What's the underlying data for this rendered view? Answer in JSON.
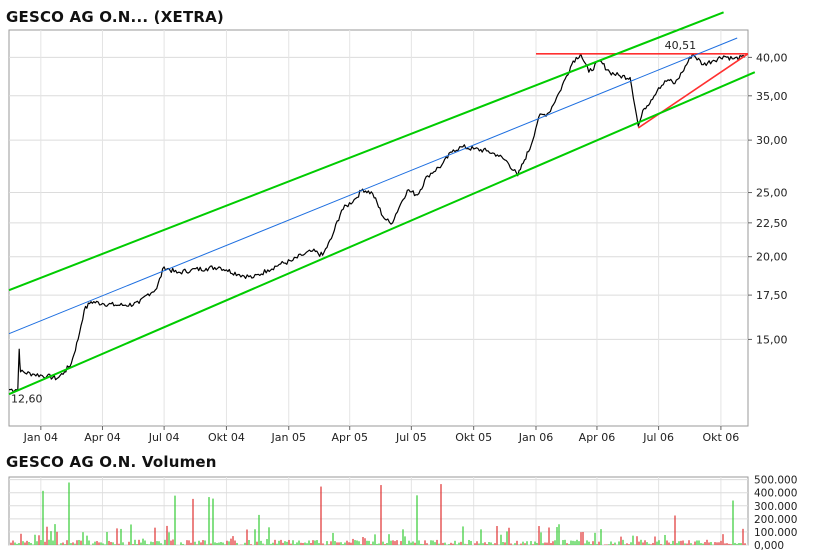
{
  "chart_data": [
    {
      "type": "line",
      "title": "GESCO AG O.N... (XETRA)",
      "y_scale": "log",
      "ylim": [
        11.1,
        44.0
      ],
      "y_ticks": [
        "15,00",
        "17,50",
        "20,00",
        "22,50",
        "25,00",
        "30,00",
        "35,00",
        "40,00"
      ],
      "y_tick_values": [
        15,
        17.5,
        20,
        22.5,
        25,
        30,
        35,
        40
      ],
      "x_ticks": [
        "Jan 04",
        "Apr 04",
        "Jul 04",
        "Okt 04",
        "Jan 05",
        "Apr 05",
        "Jul 05",
        "Okt 05",
        "Jan 06",
        "Apr 06",
        "Jul 06",
        "Okt 06"
      ],
      "x_range": [
        "2003-11-15",
        "2006-11-10"
      ],
      "grid": true,
      "annotations": {
        "low_label": "12,60",
        "high_label": "40,51"
      },
      "series": [
        {
          "color": "#000000",
          "points": [
            [
              "2003-11-15",
              12.6
            ],
            [
              "2003-11-25",
              12.6
            ],
            [
              "2003-11-28",
              12.6
            ],
            [
              "2003-11-30",
              14.5
            ],
            [
              "2003-12-02",
              13.4
            ],
            [
              "2003-12-20",
              13.3
            ],
            [
              "2004-01-10",
              13.2
            ],
            [
              "2004-01-25",
              13.1
            ],
            [
              "2004-02-05",
              13.4
            ],
            [
              "2004-02-15",
              13.8
            ],
            [
              "2004-02-25",
              15.0
            ],
            [
              "2004-03-05",
              16.6
            ],
            [
              "2004-03-15",
              17.1
            ],
            [
              "2004-04-01",
              17.0
            ],
            [
              "2004-04-20",
              16.9
            ],
            [
              "2004-05-05",
              16.9
            ],
            [
              "2004-05-25",
              17.0
            ],
            [
              "2004-06-05",
              17.5
            ],
            [
              "2004-06-20",
              17.9
            ],
            [
              "2004-07-01",
              19.3
            ],
            [
              "2004-07-20",
              18.9
            ],
            [
              "2004-08-10",
              19.1
            ],
            [
              "2004-09-01",
              19.2
            ],
            [
              "2004-09-20",
              19.3
            ],
            [
              "2004-10-01",
              19.1
            ],
            [
              "2004-10-20",
              18.8
            ],
            [
              "2004-11-10",
              18.6
            ],
            [
              "2004-12-01",
              19.1
            ],
            [
              "2004-12-20",
              19.5
            ],
            [
              "2005-01-05",
              19.7
            ],
            [
              "2005-01-20",
              20.1
            ],
            [
              "2005-02-05",
              20.4
            ],
            [
              "2005-02-20",
              20.1
            ],
            [
              "2005-03-05",
              21.3
            ],
            [
              "2005-03-20",
              23.5
            ],
            [
              "2005-04-10",
              24.5
            ],
            [
              "2005-04-20",
              25.3
            ],
            [
              "2005-05-05",
              24.9
            ],
            [
              "2005-05-20",
              23.0
            ],
            [
              "2005-06-01",
              22.4
            ],
            [
              "2005-06-15",
              24.0
            ],
            [
              "2005-06-25",
              25.2
            ],
            [
              "2005-07-10",
              24.8
            ],
            [
              "2005-07-25",
              26.5
            ],
            [
              "2005-08-15",
              27.5
            ],
            [
              "2005-09-01",
              29.0
            ],
            [
              "2005-09-15",
              29.3
            ],
            [
              "2005-10-01",
              29.1
            ],
            [
              "2005-10-20",
              28.9
            ],
            [
              "2005-11-05",
              28.5
            ],
            [
              "2005-11-20",
              27.8
            ],
            [
              "2005-12-05",
              26.5
            ],
            [
              "2005-12-15",
              28.0
            ],
            [
              "2005-12-25",
              29.5
            ],
            [
              "2006-01-05",
              32.5
            ],
            [
              "2006-01-20",
              33.0
            ],
            [
              "2006-02-05",
              35.5
            ],
            [
              "2006-02-15",
              37.5
            ],
            [
              "2006-02-25",
              39.5
            ],
            [
              "2006-03-08",
              40.5
            ],
            [
              "2006-03-20",
              38.0
            ],
            [
              "2006-04-05",
              39.5
            ],
            [
              "2006-04-20",
              38.0
            ],
            [
              "2006-05-05",
              37.5
            ],
            [
              "2006-05-20",
              37.3
            ],
            [
              "2006-06-01",
              31.5
            ],
            [
              "2006-06-10",
              33.5
            ],
            [
              "2006-06-20",
              34.5
            ],
            [
              "2006-07-01",
              36.0
            ],
            [
              "2006-07-15",
              37.0
            ],
            [
              "2006-07-25",
              36.5
            ],
            [
              "2006-08-05",
              38.0
            ],
            [
              "2006-08-20",
              40.5
            ],
            [
              "2006-09-05",
              39.0
            ],
            [
              "2006-09-20",
              39.6
            ],
            [
              "2006-10-05",
              40.2
            ],
            [
              "2006-10-20",
              39.8
            ],
            [
              "2006-11-05",
              40.0
            ]
          ]
        },
        {
          "color": "#ff3030",
          "name": "",
          "points": [
            [
              "2006-01-01",
              40.51
            ],
            [
              "2006-11-10",
              40.51
            ]
          ]
        },
        {
          "color": "#ff3030",
          "name": "",
          "points": [
            [
              "2006-06-01",
              31.3
            ],
            [
              "2006-11-10",
              40.51
            ]
          ]
        },
        {
          "color": "#00cc00",
          "name": "",
          "points": [
            [
              "2003-11-15",
              17.8
            ],
            [
              "2006-10-05",
              46.8
            ]
          ]
        },
        {
          "color": "#00cc00",
          "name": "",
          "points": [
            [
              "2003-11-15",
              12.4
            ],
            [
              "2006-11-20",
              38.0
            ]
          ]
        },
        {
          "color": "#1e6fe0",
          "name": "",
          "points": [
            [
              "2003-11-15",
              15.3
            ],
            [
              "2006-10-25",
              42.8
            ]
          ]
        }
      ]
    },
    {
      "type": "bar",
      "title": "GESCO AG O.N. Volumen",
      "ylim": [
        0,
        520000
      ],
      "y_ticks": [
        "0,000",
        "100.000",
        "200.000",
        "300.000",
        "400.000",
        "500.000"
      ],
      "y_tick_values": [
        0,
        100000,
        200000,
        300000,
        400000,
        500000
      ],
      "grid": true,
      "colors": {
        "up": "#33cc33",
        "down": "#e03030"
      }
    }
  ]
}
